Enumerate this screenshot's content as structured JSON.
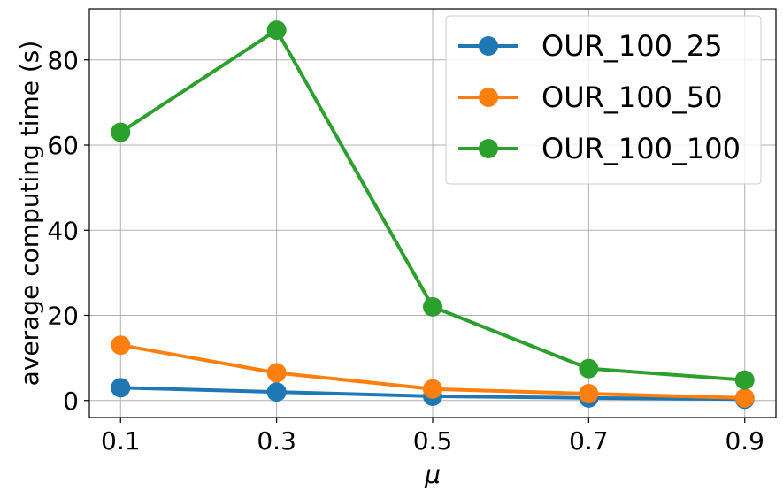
{
  "chart_data": {
    "type": "line",
    "xlabel": "μ",
    "ylabel": "average computing time (s)",
    "x": [
      0.1,
      0.3,
      0.5,
      0.7,
      0.9
    ],
    "x_tick_labels": [
      "0.1",
      "0.3",
      "0.5",
      "0.7",
      "0.9"
    ],
    "y_ticks": [
      0,
      20,
      40,
      60,
      80
    ],
    "y_tick_labels": [
      "0",
      "20",
      "40",
      "60",
      "80"
    ],
    "xlim": [
      0.06,
      0.94
    ],
    "ylim": [
      -4,
      92
    ],
    "grid": true,
    "legend": "top-right",
    "series": [
      {
        "name": "OUR_100_25",
        "color": "#1f77b4",
        "values": [
          3.0,
          2.0,
          1.0,
          0.6,
          0.3
        ]
      },
      {
        "name": "OUR_100_50",
        "color": "#ff7f0e",
        "values": [
          13.0,
          6.5,
          2.7,
          1.6,
          0.6
        ]
      },
      {
        "name": "OUR_100_100",
        "color": "#2ca02c",
        "values": [
          63.0,
          87.0,
          22.0,
          7.5,
          4.8
        ]
      }
    ]
  }
}
